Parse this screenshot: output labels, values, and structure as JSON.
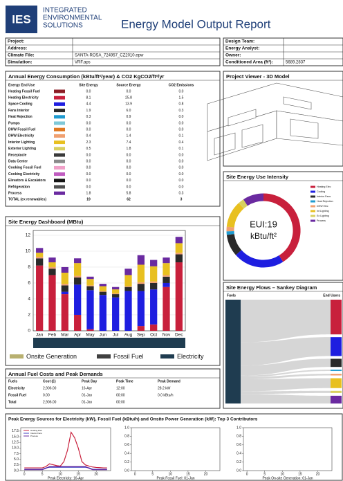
{
  "header": {
    "logo": "IES",
    "company": [
      "INTEGRATED",
      "ENVIRONMENTAL",
      "SOLUTIONS"
    ],
    "title": "Energy Model Output Report"
  },
  "project_info": {
    "left": [
      {
        "label": "Project:"
      },
      {
        "label": "Address:"
      },
      {
        "label": "Climate File:",
        "value": "SANTA-ROSA_724957_CZ2010.epw"
      },
      {
        "label": "Simulation:",
        "value": "VRF.aps"
      }
    ],
    "right": [
      {
        "label": "Design Team:"
      },
      {
        "label": "Energy Analyst:"
      },
      {
        "label": "Owner:"
      },
      {
        "label": "Conditioned Area (ft²):",
        "value": "5689.2837"
      }
    ]
  },
  "energy_table": {
    "title": "Annual Energy Consumption (kBtu/ft²/year) & CO2 KgCO2/ft²/yr",
    "columns": [
      "Energy End Use",
      "Site Energy",
      "Source Energy",
      "CO2 Emissions"
    ],
    "rows": [
      {
        "name": "Heating Fossil Fuel",
        "color": "#8b1c24",
        "values": [
          "0.0",
          "0.0",
          "0.0"
        ]
      },
      {
        "name": "Heating Electricity",
        "color": "#c8203c",
        "values": [
          "8.1",
          "25.8",
          "1.5"
        ]
      },
      {
        "name": "Space Cooling",
        "color": "#1e1ee0",
        "values": [
          "4.4",
          "13.9",
          "0.8"
        ]
      },
      {
        "name": "Fans Interior",
        "color": "#2a2a2a",
        "values": [
          "1.9",
          "6.0",
          "0.3"
        ]
      },
      {
        "name": "Heat Rejection",
        "color": "#1f9bd0",
        "values": [
          "0.3",
          "0.9",
          "0.0"
        ]
      },
      {
        "name": "Pumps",
        "color": "#7ec8d8",
        "values": [
          "0.0",
          "0.0",
          "0.0"
        ]
      },
      {
        "name": "DHW Fossil Fuel",
        "color": "#e07820",
        "values": [
          "0.0",
          "0.0",
          "0.0"
        ]
      },
      {
        "name": "DHW Electricity",
        "color": "#f0a070",
        "values": [
          "0.4",
          "1.4",
          "0.1"
        ]
      },
      {
        "name": "Interior Lighting",
        "color": "#e8c020",
        "values": [
          "2.3",
          "7.4",
          "0.4"
        ]
      },
      {
        "name": "Exterior Lighting",
        "color": "#d8d060",
        "values": [
          "0.5",
          "1.8",
          "0.1"
        ]
      },
      {
        "name": "Receptacle",
        "color": "#3a3a3a",
        "values": [
          "0.0",
          "0.0",
          "0.0"
        ]
      },
      {
        "name": "Data Center",
        "color": "#8a8a8a",
        "values": [
          "0.0",
          "0.0",
          "0.0"
        ]
      },
      {
        "name": "Cooking Fossil Fuel",
        "color": "#f0a0c8",
        "values": [
          "0.0",
          "0.0",
          "0.0"
        ]
      },
      {
        "name": "Cooking Electricity",
        "color": "#c05cc0",
        "values": [
          "0.0",
          "0.0",
          "0.0"
        ]
      },
      {
        "name": "Elevators & Escalators",
        "color": "#151515",
        "values": [
          "0.0",
          "0.0",
          "0.0"
        ]
      },
      {
        "name": "Refrigeration",
        "color": "#505050",
        "values": [
          "0.0",
          "0.0",
          "0.0"
        ]
      },
      {
        "name": "Process",
        "color": "#6a2aa0",
        "values": [
          "1.8",
          "5.8",
          "0.3"
        ]
      }
    ],
    "total": {
      "name": "TOTAL (ex renewables)",
      "values": [
        "19",
        "62",
        "3"
      ]
    }
  },
  "viewer": {
    "title": "Project Viewer - 3D Model"
  },
  "eui": {
    "title": "Site Energy Use Intensity",
    "center": [
      "EUI:19",
      "kBtu/ft²"
    ],
    "legend": [
      "Heating Elec",
      "Cooling",
      "Interior Fans",
      "Heat Rejection",
      "DHW Elec",
      "Int Lighting",
      "Ex Lighting",
      "Process"
    ]
  },
  "dashboard": {
    "title": "Site Energy Dashboard (MBtu)",
    "categories": [
      "Jan",
      "Feb",
      "Mar",
      "Apr",
      "May",
      "Jun",
      "Jul",
      "Aug",
      "Sep",
      "Oct",
      "Nov",
      "Dec"
    ],
    "ylim": [
      0,
      12.6
    ],
    "yticks": [
      0,
      2,
      4,
      6,
      8,
      10,
      12
    ],
    "series": [
      {
        "color": "#c8203c",
        "values": [
          8.2,
          7.0,
          4.6,
          2.0,
          0.2,
          0,
          0,
          0,
          0.6,
          0.8,
          5.5,
          8.6
        ]
      },
      {
        "color": "#1e1ee0",
        "values": [
          0,
          0,
          0.3,
          3.8,
          4.9,
          4.5,
          4.2,
          5.0,
          4.4,
          4.4,
          0.5,
          0
        ]
      },
      {
        "color": "#2a2a2a",
        "values": [
          0.9,
          0.8,
          0.8,
          0.9,
          0.5,
          0.4,
          0.4,
          0.5,
          0.9,
          0.8,
          0.8,
          1.0
        ]
      },
      {
        "color": "#f0a070",
        "values": [
          0.2,
          0.2,
          0.2,
          0.2,
          0.1,
          0.1,
          0.1,
          0.1,
          0.2,
          0.2,
          0.2,
          0.2
        ]
      },
      {
        "color": "#e8c020",
        "values": [
          0.5,
          0.6,
          1.4,
          1.6,
          0.8,
          0.6,
          0.5,
          1.4,
          2.2,
          1.9,
          1.5,
          1.2
        ]
      },
      {
        "color": "#6a2aa0",
        "values": [
          0.6,
          0.6,
          0.7,
          0.6,
          0.3,
          0.3,
          0.3,
          0.8,
          1.2,
          0.8,
          0.7,
          0.8
        ]
      }
    ],
    "legend": [
      {
        "name": "Onsite Generation",
        "color": "#b8b070"
      },
      {
        "name": "Fossil Fuel",
        "color": "#404040"
      },
      {
        "name": "Electricity",
        "color": "#1f3c50"
      }
    ]
  },
  "fuel_costs": {
    "title": "Annual Fuel Costs and Peak Demands",
    "columns": [
      "Fuels",
      "Cost (£)",
      "Peak Day",
      "Peak Time",
      "Peak Demand"
    ],
    "rows": [
      [
        "Electricity",
        "2,906.00",
        "16-Apr",
        "12:00",
        "28.2 kW"
      ],
      [
        "Fossil Fuel",
        "0.00",
        "01-Jan",
        "00:00",
        "0.0 kBtu/h"
      ],
      [
        "Total",
        "2,906.00",
        "01-Jan",
        "00:00"
      ]
    ]
  },
  "sankey": {
    "title": "Site Energy Flows – Sankey Diagram",
    "labels": [
      "Fuels",
      "End Users"
    ]
  },
  "peaks": {
    "title": "Peak Energy Sources for Electricity (kW), Fossil Fuel (kBtu/h) and Onsite Power Generation (kW): Top 3 Contributors",
    "charts": [
      {
        "xlabel": "Peak Electricity: 16-Apr",
        "xlim": [
          -1,
          24
        ],
        "xticks": [
          0,
          5,
          10,
          15,
          20
        ],
        "ylim": [
          0,
          19
        ],
        "yticks": [
          {
            "value": 0,
            "label": "0.0"
          },
          2.5,
          {
            "value": 5,
            "label": "5.0"
          },
          7.5,
          {
            "value": 10,
            "label": "10.0"
          },
          12.5,
          {
            "value": 15,
            "label": "15.0"
          },
          17.5
        ],
        "x": [
          0,
          1,
          2,
          3,
          4,
          5,
          6,
          7,
          8,
          9,
          10,
          11,
          12,
          13,
          14,
          15,
          16,
          17,
          18,
          19,
          20,
          21,
          22,
          23
        ],
        "series": [
          {
            "name": "Heating Elec",
            "color": "#c8203c",
            "values": [
              1.2,
              1.2,
              1.2,
              1.2,
              1.2,
              1.2,
              1.8,
              3.0,
              2.6,
              2.2,
              2.0,
              4.0,
              9.0,
              17.0,
              14.5,
              10.0,
              4.0,
              2.5,
              2.0,
              1.6,
              1.4,
              1.3,
              1.2,
              1.2
            ]
          },
          {
            "name": "Interior Fans",
            "color": "#4040c0",
            "values": [
              0.6,
              0.6,
              0.6,
              0.6,
              0.6,
              0.6,
              1.2,
              1.5,
              1.5,
              1.5,
              1.5,
              1.5,
              1.5,
              1.5,
              1.5,
              1.5,
              1.5,
              1.5,
              1.2,
              0.6,
              0.6,
              0.6,
              0.6,
              0.6
            ]
          },
          {
            "name": "Process",
            "color": "#6a2aa0",
            "values": [
              0.4,
              0.4,
              0.4,
              0.4,
              0.4,
              0.4,
              1.0,
              1.8,
              1.8,
              1.8,
              1.8,
              1.8,
              1.8,
              1.8,
              1.8,
              1.8,
              1.8,
              1.8,
              1.0,
              0.4,
              0.4,
              0.4,
              0.4,
              0.4
            ]
          }
        ]
      },
      {
        "xlabel": "Peak Fossil Fuel: 01-Jan",
        "xlim": [
          -1,
          24
        ],
        "xticks": [
          0,
          5,
          10,
          15,
          20
        ],
        "ylim": [
          0,
          1
        ],
        "yticks": [
          {
            "value": 0,
            "label": "0.0"
          },
          0.2,
          0.4,
          0.6,
          0.8,
          {
            "value": 1,
            "label": "1.0"
          }
        ]
      },
      {
        "xlabel": "Peak On-site Generation: 01-Jan",
        "xlim": [
          -1,
          24
        ],
        "xticks": [
          0,
          5,
          10,
          15,
          20
        ],
        "ylim": [
          0,
          1
        ],
        "yticks": [
          {
            "value": 0,
            "label": "0.0"
          },
          0.2,
          0.4,
          0.6,
          0.8,
          {
            "value": 1,
            "label": "1.0"
          }
        ]
      }
    ]
  }
}
